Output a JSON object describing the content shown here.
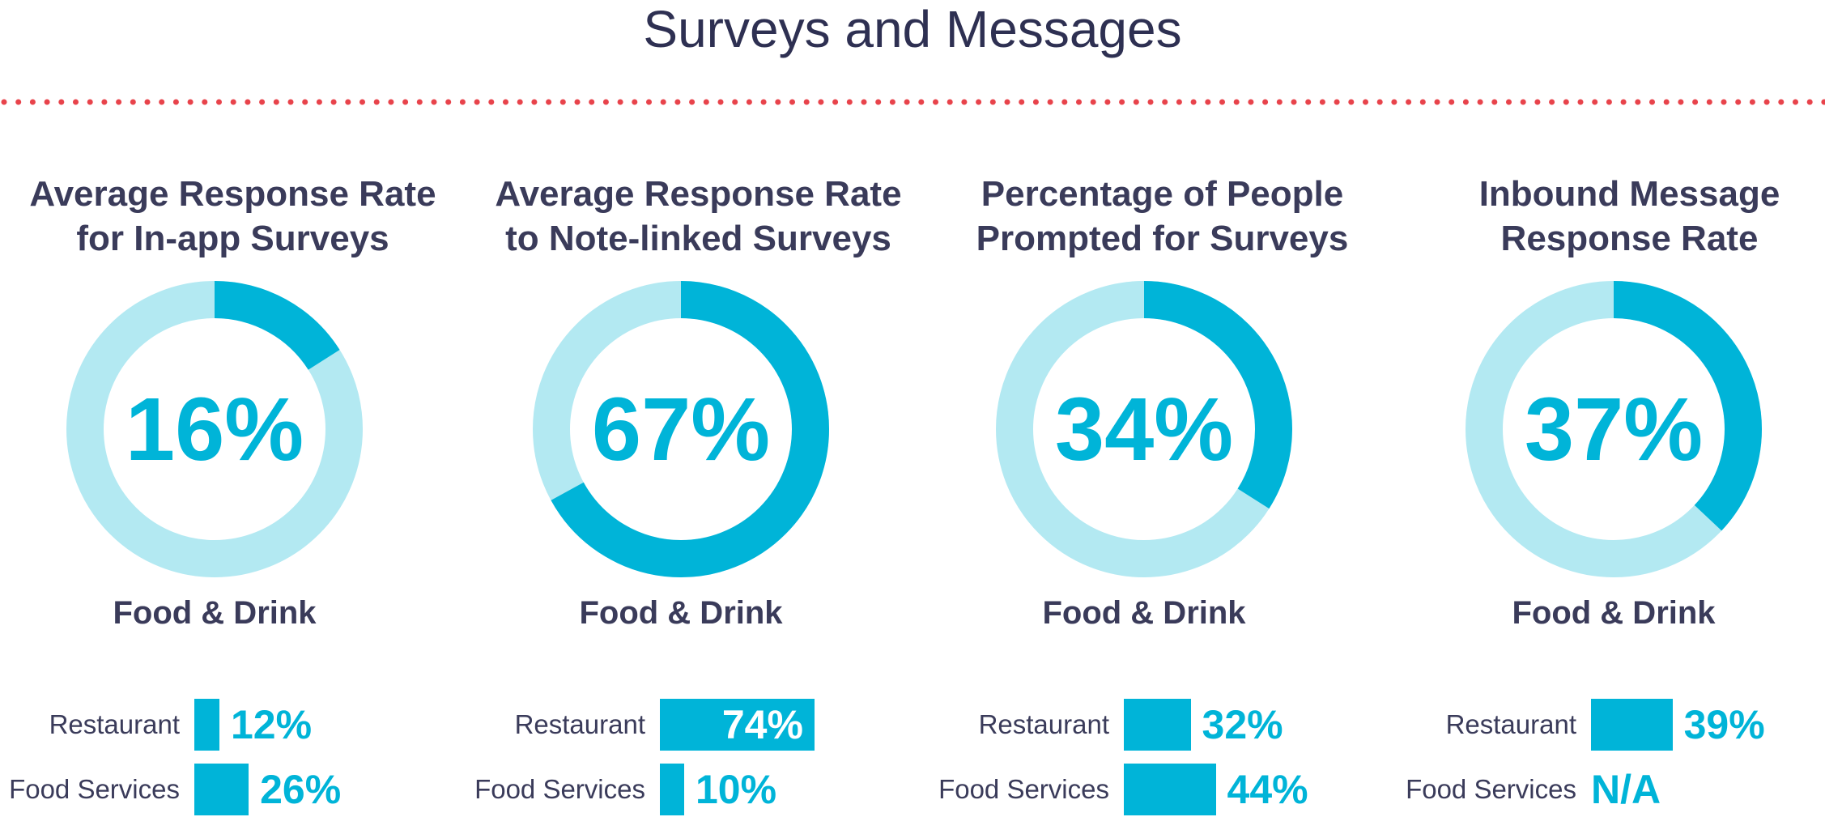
{
  "page": {
    "title": "Surveys and Messages",
    "colors": {
      "accent": "#00b4d8",
      "track": "#b3e9f2",
      "divider": "#e8434b",
      "text": "#3a3b5a"
    }
  },
  "chart_data": [
    {
      "type": "pie",
      "title": "Average Response Rate for In-app Surveys",
      "title_lines": [
        "Average Response Rate",
        "for In-app Surveys"
      ],
      "value": 16,
      "value_label": "16%",
      "segment_label": "Food & Drink",
      "breakdown": {
        "type": "bar",
        "categories": [
          "Restaurant",
          "Food Services"
        ],
        "values": [
          12,
          26
        ],
        "value_labels": [
          "12%",
          "26%"
        ]
      }
    },
    {
      "type": "pie",
      "title": "Average Response Rate to Note-linked Surveys",
      "title_lines": [
        "Average Response Rate",
        "to Note-linked Surveys"
      ],
      "value": 67,
      "value_label": "67%",
      "segment_label": "Food & Drink",
      "breakdown": {
        "type": "bar",
        "categories": [
          "Restaurant",
          "Food Services"
        ],
        "values": [
          74,
          10
        ],
        "value_labels": [
          "74%",
          "10%"
        ]
      }
    },
    {
      "type": "pie",
      "title": "Percentage of People Prompted for Surveys",
      "title_lines": [
        "Percentage of People",
        "Prompted for Surveys"
      ],
      "value": 34,
      "value_label": "34%",
      "segment_label": "Food & Drink",
      "breakdown": {
        "type": "bar",
        "categories": [
          "Restaurant",
          "Food Services"
        ],
        "values": [
          32,
          44
        ],
        "value_labels": [
          "32%",
          "44%"
        ]
      }
    },
    {
      "type": "pie",
      "title": "Inbound Message Response Rate",
      "title_lines": [
        "Inbound Message",
        "Response Rate"
      ],
      "value": 37,
      "value_label": "37%",
      "segment_label": "Food & Drink",
      "breakdown": {
        "type": "bar",
        "categories": [
          "Restaurant",
          "Food Services"
        ],
        "values": [
          39,
          null
        ],
        "value_labels": [
          "39%",
          "N/A"
        ]
      }
    }
  ]
}
